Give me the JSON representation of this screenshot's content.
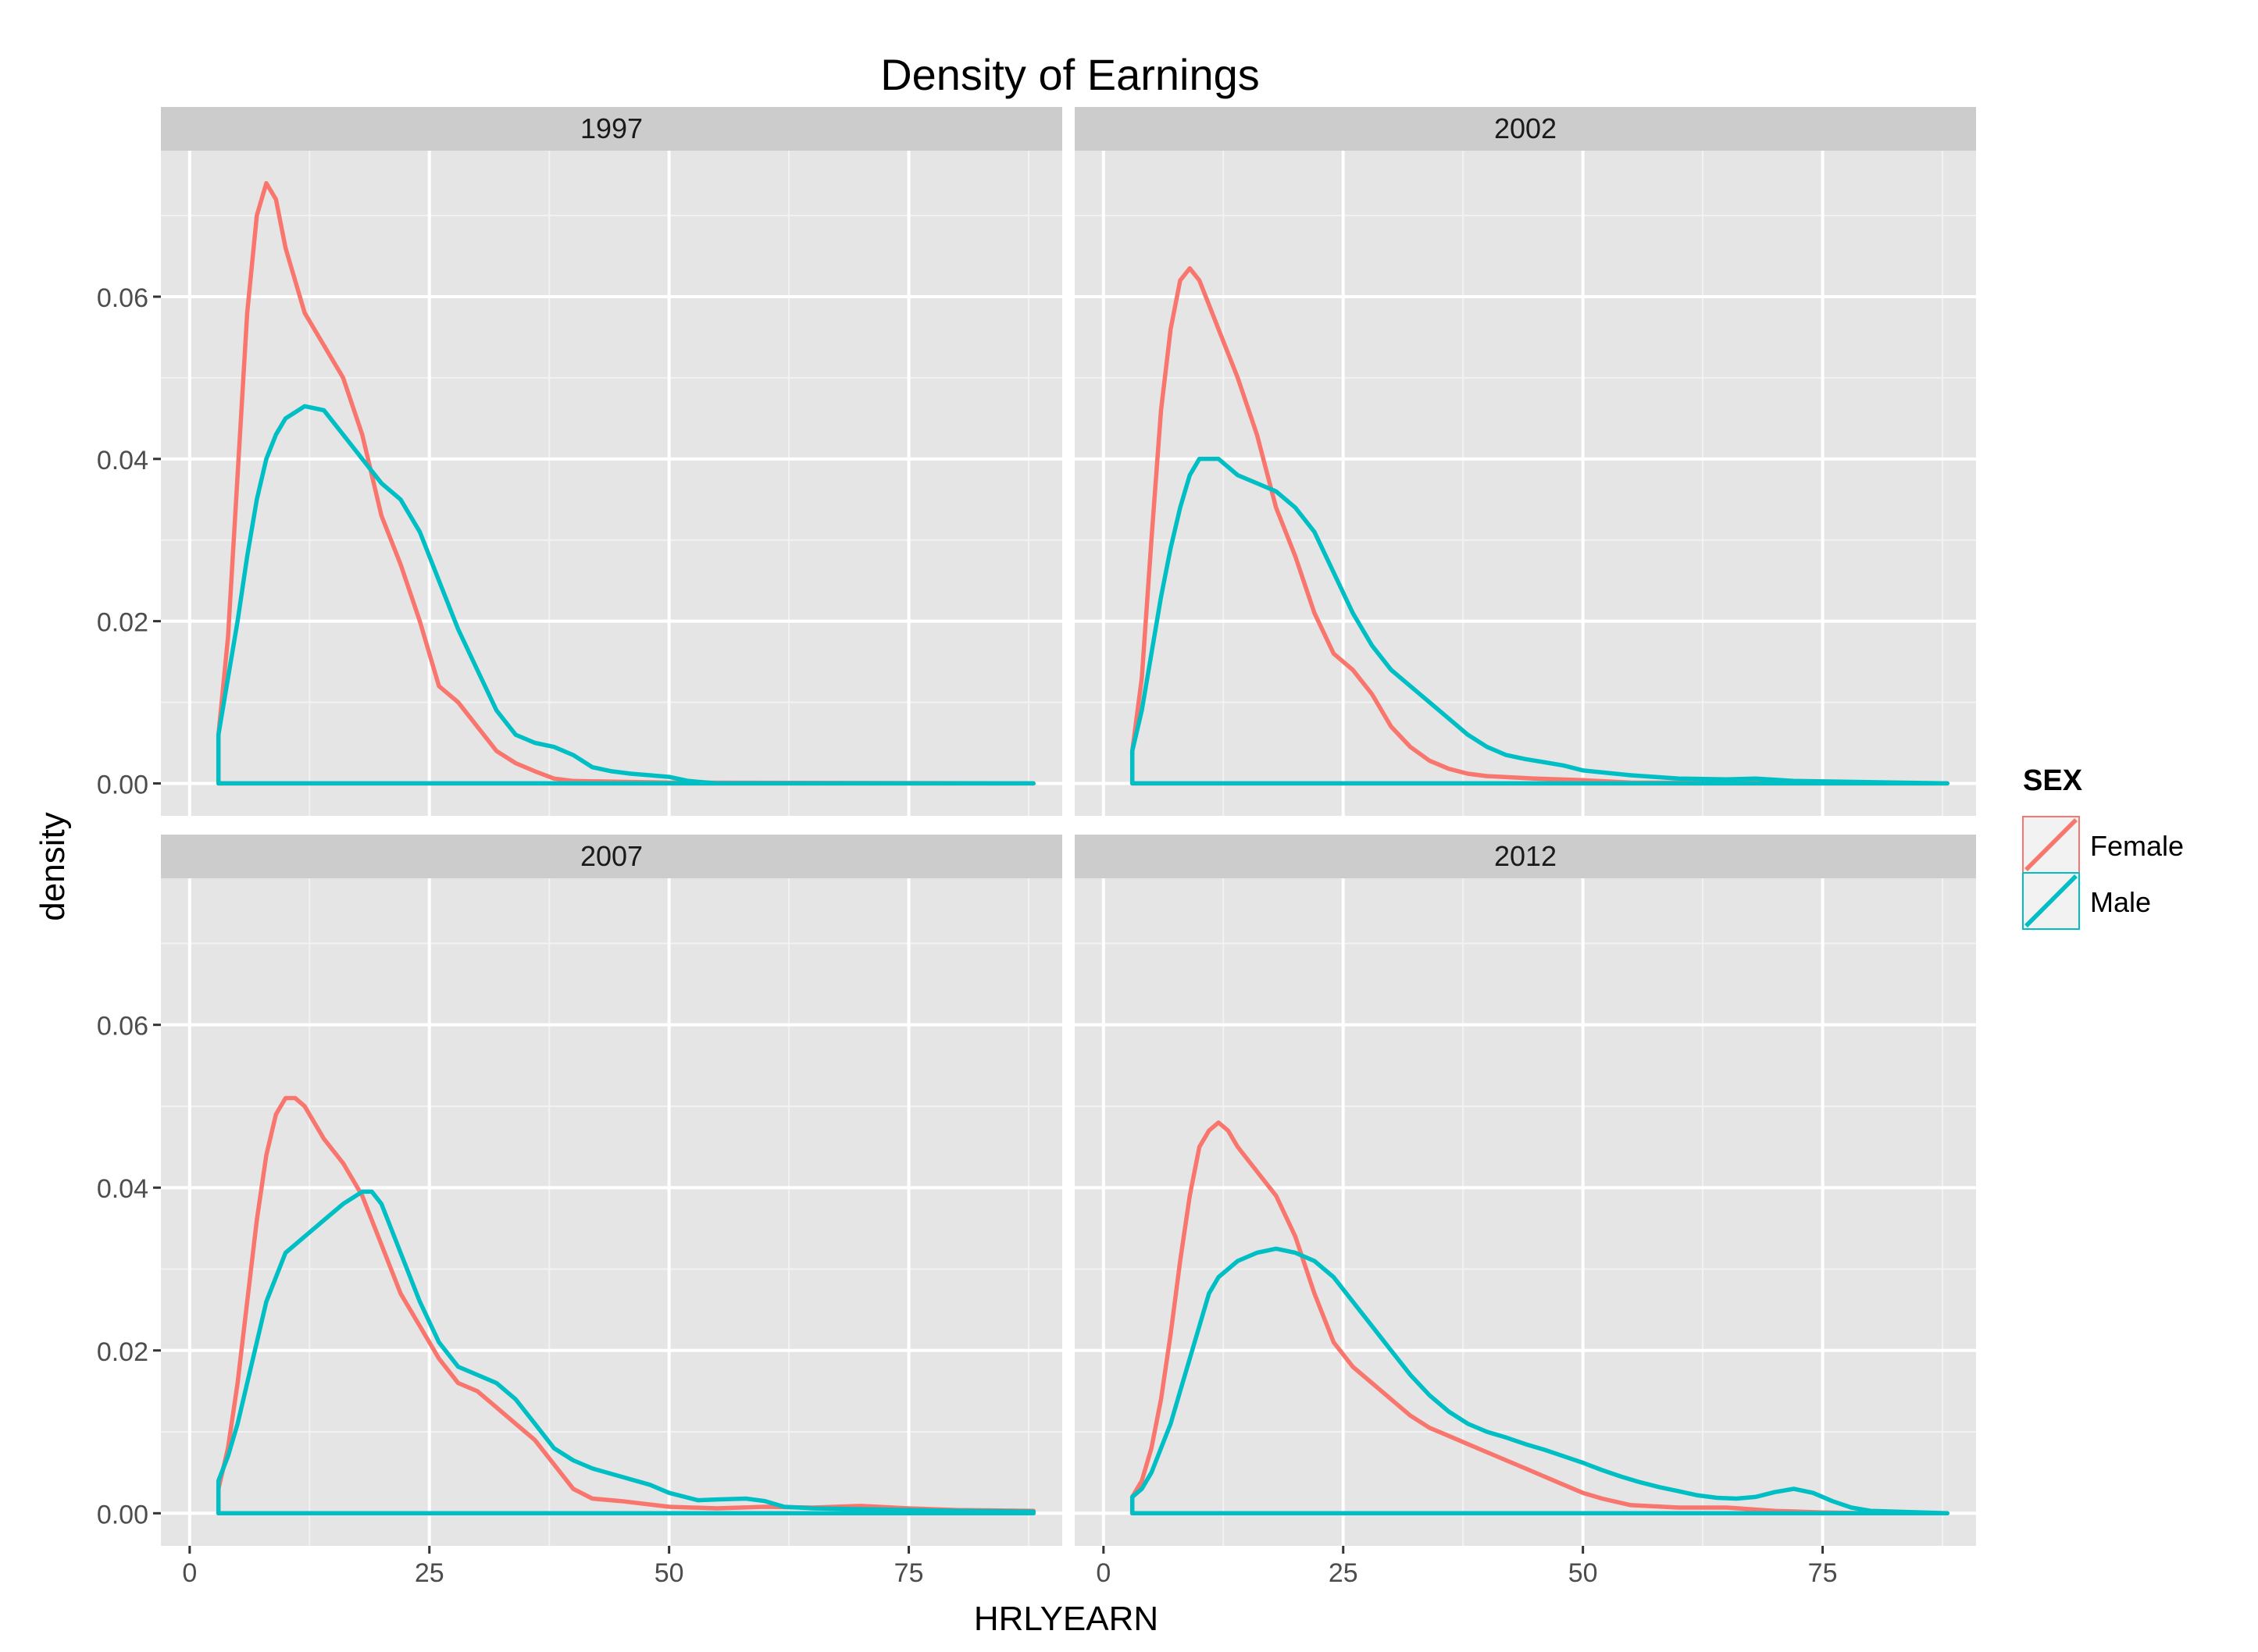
{
  "chart_data": {
    "type": "line",
    "title": "Density of Earnings",
    "xlabel": "HRLYEARN",
    "ylabel": "density",
    "xlim": [
      -3,
      91
    ],
    "ylim": [
      -0.004,
      0.078
    ],
    "x_ticks": [
      0,
      25,
      50,
      75
    ],
    "x_tick_labels": [
      "0",
      "25",
      "50",
      "75"
    ],
    "y_ticks": [
      0.0,
      0.02,
      0.04,
      0.06
    ],
    "y_tick_labels": [
      "0.00",
      "0.02",
      "0.04",
      "0.06"
    ],
    "grid": true,
    "legend": {
      "title": "SEX",
      "position": "right",
      "entries": [
        {
          "name": "Female",
          "color": "#F8766D"
        },
        {
          "name": "Male",
          "color": "#00BFC4"
        }
      ]
    },
    "colors": {
      "Female": "#F8766D",
      "Male": "#00BFC4",
      "panel_bg": "#E5E5E5",
      "strip_bg": "#CCCCCC",
      "grid": "#FFFFFF"
    },
    "panels": [
      {
        "label": "1997",
        "series": [
          {
            "name": "Female",
            "x": [
              3,
              4,
              5,
              6,
              7,
              8,
              9,
              10,
              12,
              14,
              16,
              18,
              20,
              22,
              24,
              26,
              28,
              30,
              32,
              34,
              36,
              38,
              40,
              45,
              50,
              88
            ],
            "y": [
              0.006,
              0.018,
              0.038,
              0.058,
              0.07,
              0.074,
              0.072,
              0.066,
              0.058,
              0.054,
              0.05,
              0.043,
              0.033,
              0.027,
              0.02,
              0.012,
              0.01,
              0.007,
              0.004,
              0.0025,
              0.0015,
              0.0006,
              0.0003,
              0.0002,
              0.0001,
              0
            ]
          },
          {
            "name": "Male",
            "x": [
              3,
              4,
              5,
              6,
              7,
              8,
              9,
              10,
              12,
              14,
              16,
              18,
              20,
              22,
              24,
              26,
              28,
              30,
              32,
              34,
              36,
              38,
              40,
              42,
              44,
              46,
              48,
              50,
              52,
              55,
              88
            ],
            "y": [
              0.006,
              0.013,
              0.02,
              0.028,
              0.035,
              0.04,
              0.043,
              0.045,
              0.0465,
              0.046,
              0.043,
              0.04,
              0.037,
              0.035,
              0.031,
              0.025,
              0.019,
              0.014,
              0.009,
              0.006,
              0.005,
              0.0045,
              0.0035,
              0.002,
              0.0015,
              0.0012,
              0.001,
              0.0008,
              0.0003,
              0,
              0
            ]
          }
        ]
      },
      {
        "label": "2002",
        "series": [
          {
            "name": "Female",
            "x": [
              3,
              4,
              5,
              6,
              7,
              8,
              9,
              10,
              11,
              12,
              14,
              16,
              18,
              20,
              22,
              24,
              26,
              28,
              30,
              32,
              34,
              36,
              38,
              40,
              45,
              50,
              55,
              88
            ],
            "y": [
              0.004,
              0.013,
              0.03,
              0.046,
              0.056,
              0.062,
              0.0635,
              0.062,
              0.059,
              0.056,
              0.05,
              0.043,
              0.034,
              0.028,
              0.021,
              0.016,
              0.014,
              0.011,
              0.007,
              0.0045,
              0.0028,
              0.0018,
              0.0012,
              0.0009,
              0.0006,
              0.0004,
              0.0001,
              0
            ]
          },
          {
            "name": "Male",
            "x": [
              3,
              4,
              5,
              6,
              7,
              8,
              9,
              10,
              11,
              12,
              14,
              16,
              18,
              20,
              22,
              24,
              26,
              28,
              30,
              32,
              34,
              36,
              38,
              40,
              42,
              44,
              46,
              48,
              50,
              55,
              60,
              65,
              68,
              72,
              88
            ],
            "y": [
              0.004,
              0.009,
              0.016,
              0.023,
              0.029,
              0.034,
              0.038,
              0.04,
              0.04,
              0.04,
              0.038,
              0.037,
              0.036,
              0.034,
              0.031,
              0.026,
              0.021,
              0.017,
              0.014,
              0.012,
              0.01,
              0.008,
              0.006,
              0.0045,
              0.0035,
              0.003,
              0.0026,
              0.0022,
              0.0016,
              0.001,
              0.0006,
              0.0005,
              0.0006,
              0.0003,
              0
            ]
          }
        ]
      },
      {
        "label": "2007",
        "series": [
          {
            "name": "Female",
            "x": [
              3,
              4,
              5,
              6,
              7,
              8,
              9,
              10,
              11,
              12,
              14,
              16,
              18,
              20,
              22,
              24,
              26,
              28,
              30,
              32,
              34,
              36,
              38,
              40,
              42,
              45,
              50,
              55,
              60,
              65,
              70,
              75,
              80,
              88
            ],
            "y": [
              0.003,
              0.008,
              0.016,
              0.026,
              0.036,
              0.044,
              0.049,
              0.051,
              0.051,
              0.05,
              0.046,
              0.043,
              0.039,
              0.033,
              0.027,
              0.023,
              0.019,
              0.016,
              0.015,
              0.013,
              0.011,
              0.009,
              0.006,
              0.003,
              0.0018,
              0.0015,
              0.0008,
              0.0006,
              0.0008,
              0.0007,
              0.0009,
              0.0006,
              0.0004,
              0.0003
            ]
          },
          {
            "name": "Male",
            "x": [
              3,
              4,
              5,
              6,
              7,
              8,
              9,
              10,
              12,
              14,
              16,
              18,
              19,
              20,
              22,
              24,
              26,
              28,
              30,
              32,
              34,
              36,
              38,
              40,
              42,
              45,
              48,
              50,
              53,
              55,
              58,
              60,
              62,
              65,
              70,
              75,
              80,
              88
            ],
            "y": [
              0.004,
              0.007,
              0.011,
              0.016,
              0.021,
              0.026,
              0.029,
              0.032,
              0.034,
              0.036,
              0.038,
              0.0395,
              0.0395,
              0.038,
              0.032,
              0.026,
              0.021,
              0.018,
              0.017,
              0.016,
              0.014,
              0.011,
              0.008,
              0.0065,
              0.0055,
              0.0045,
              0.0035,
              0.0025,
              0.0016,
              0.0017,
              0.0018,
              0.0015,
              0.0008,
              0.0006,
              0.0005,
              0.0004,
              0.0003,
              0.0002
            ]
          }
        ]
      },
      {
        "label": "2012",
        "series": [
          {
            "name": "Female",
            "x": [
              3,
              4,
              5,
              6,
              7,
              8,
              9,
              10,
              11,
              12,
              13,
              14,
              16,
              18,
              20,
              22,
              24,
              26,
              28,
              30,
              32,
              34,
              36,
              38,
              40,
              42,
              44,
              46,
              48,
              50,
              52,
              55,
              60,
              65,
              70,
              75,
              80,
              88
            ],
            "y": [
              0.002,
              0.004,
              0.008,
              0.014,
              0.022,
              0.031,
              0.039,
              0.045,
              0.047,
              0.048,
              0.047,
              0.045,
              0.042,
              0.039,
              0.034,
              0.027,
              0.021,
              0.018,
              0.016,
              0.014,
              0.012,
              0.0105,
              0.0095,
              0.0085,
              0.0075,
              0.0065,
              0.0055,
              0.0045,
              0.0035,
              0.0025,
              0.0018,
              0.001,
              0.0007,
              0.0007,
              0.0003,
              0.0001,
              0,
              0
            ]
          },
          {
            "name": "Male",
            "x": [
              3,
              4,
              5,
              6,
              7,
              8,
              9,
              10,
              11,
              12,
              14,
              16,
              18,
              20,
              22,
              24,
              26,
              28,
              30,
              32,
              34,
              36,
              38,
              40,
              42,
              44,
              46,
              48,
              50,
              52,
              54,
              56,
              58,
              60,
              62,
              64,
              66,
              68,
              70,
              72,
              74,
              76,
              78,
              80,
              88
            ],
            "y": [
              0.002,
              0.003,
              0.005,
              0.008,
              0.011,
              0.015,
              0.019,
              0.023,
              0.027,
              0.029,
              0.031,
              0.032,
              0.0325,
              0.032,
              0.031,
              0.029,
              0.026,
              0.023,
              0.02,
              0.017,
              0.0145,
              0.0125,
              0.011,
              0.01,
              0.0093,
              0.0085,
              0.0078,
              0.007,
              0.0062,
              0.0053,
              0.0045,
              0.0038,
              0.0032,
              0.0027,
              0.0022,
              0.0019,
              0.0018,
              0.002,
              0.0026,
              0.003,
              0.0025,
              0.0015,
              0.0007,
              0.0003,
              0
            ]
          }
        ]
      }
    ]
  }
}
